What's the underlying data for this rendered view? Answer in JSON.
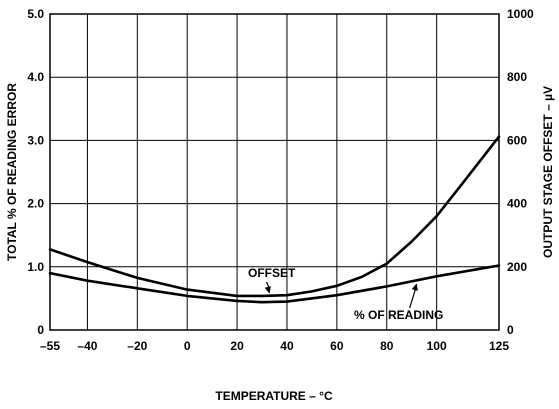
{
  "chart_data": {
    "type": "line",
    "title": "",
    "xlabel": "TEMPERATURE – °C",
    "ylabel": "TOTAL % OF READING ERROR",
    "y2label": "OUTPUT STAGE OFFSET – µV",
    "xlim": [
      -55,
      125
    ],
    "ylim": [
      0,
      5
    ],
    "y2lim": [
      0,
      1000
    ],
    "xticks": [
      -55,
      -40,
      -20,
      0,
      20,
      40,
      60,
      80,
      100,
      125
    ],
    "yticks": [
      0,
      1,
      2,
      3,
      4,
      5
    ],
    "ytick_labels": [
      "0",
      "1.0",
      "2.0",
      "3.0",
      "4.0",
      "5.0"
    ],
    "y2ticks": [
      0,
      200,
      400,
      600,
      800,
      1000
    ],
    "y2tick_labels": [
      "0",
      "200",
      "400",
      "600",
      "800",
      "1000"
    ],
    "grid": true,
    "legend": "none",
    "series": [
      {
        "name": "OFFSET",
        "axis": "right",
        "x": [
          -55,
          -40,
          -20,
          0,
          20,
          30,
          40,
          50,
          60,
          70,
          80,
          90,
          100,
          110,
          125
        ],
        "y": [
          255,
          215,
          165,
          128,
          108,
          108,
          110,
          122,
          140,
          168,
          210,
          280,
          360,
          460,
          612
        ]
      },
      {
        "name": "% OF READING",
        "axis": "left",
        "x": [
          -55,
          -40,
          -20,
          0,
          20,
          30,
          40,
          60,
          80,
          100,
          125
        ],
        "y": [
          0.9,
          0.78,
          0.66,
          0.54,
          0.46,
          0.44,
          0.45,
          0.55,
          0.69,
          0.85,
          1.02
        ]
      }
    ],
    "annotations": [
      {
        "text": "OFFSET",
        "points_to": "OFFSET",
        "at_x": 33
      },
      {
        "text": "% OF READING",
        "points_to": "% OF READING",
        "at_x": 92
      }
    ]
  }
}
